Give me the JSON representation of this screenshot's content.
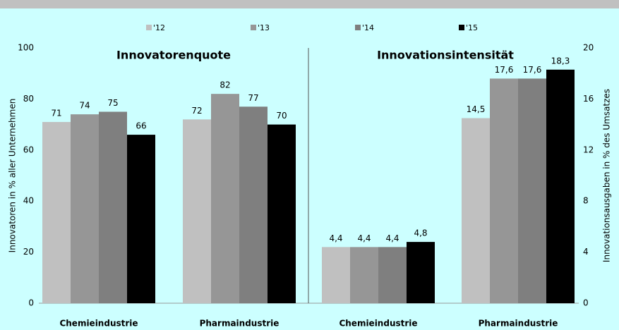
{
  "chart_data": {
    "type": "bar",
    "series": [
      {
        "name": "'12",
        "color": "#c0c0c0"
      },
      {
        "name": "'13",
        "color": "#969696"
      },
      {
        "name": "'14",
        "color": "#7f7f7f"
      },
      {
        "name": "'15",
        "color": "#000000"
      }
    ],
    "ylabel": "Innovatoren in % aller Unternehmen",
    "ylim": [
      0,
      100
    ],
    "yticks": [
      0,
      20,
      40,
      60,
      80,
      100
    ],
    "y2label": "Innovationsausgaben in % des Umsatzes",
    "y2lim": [
      0,
      20
    ],
    "y2ticks": [
      0,
      4,
      8,
      12,
      16,
      20
    ],
    "panels": [
      {
        "title": "Innovatorenquote",
        "axis": "y",
        "categories": [
          "Chemieindustrie",
          "Pharmaindustrie"
        ],
        "values": [
          [
            71,
            72
          ],
          [
            74,
            82
          ],
          [
            75,
            77
          ],
          [
            66,
            70
          ]
        ]
      },
      {
        "title": "Innovationsintensität",
        "axis": "y2",
        "categories": [
          "Chemieindustrie",
          "Pharmaindustrie"
        ],
        "values": [
          [
            4.4,
            14.5
          ],
          [
            4.4,
            17.6
          ],
          [
            4.4,
            17.6
          ],
          [
            4.8,
            18.3
          ]
        ],
        "value_labels": [
          [
            "4,4",
            "14,5"
          ],
          [
            "4,4",
            "17,6"
          ],
          [
            "4,4",
            "17,6"
          ],
          [
            "4,8",
            "18,3"
          ]
        ]
      }
    ]
  }
}
